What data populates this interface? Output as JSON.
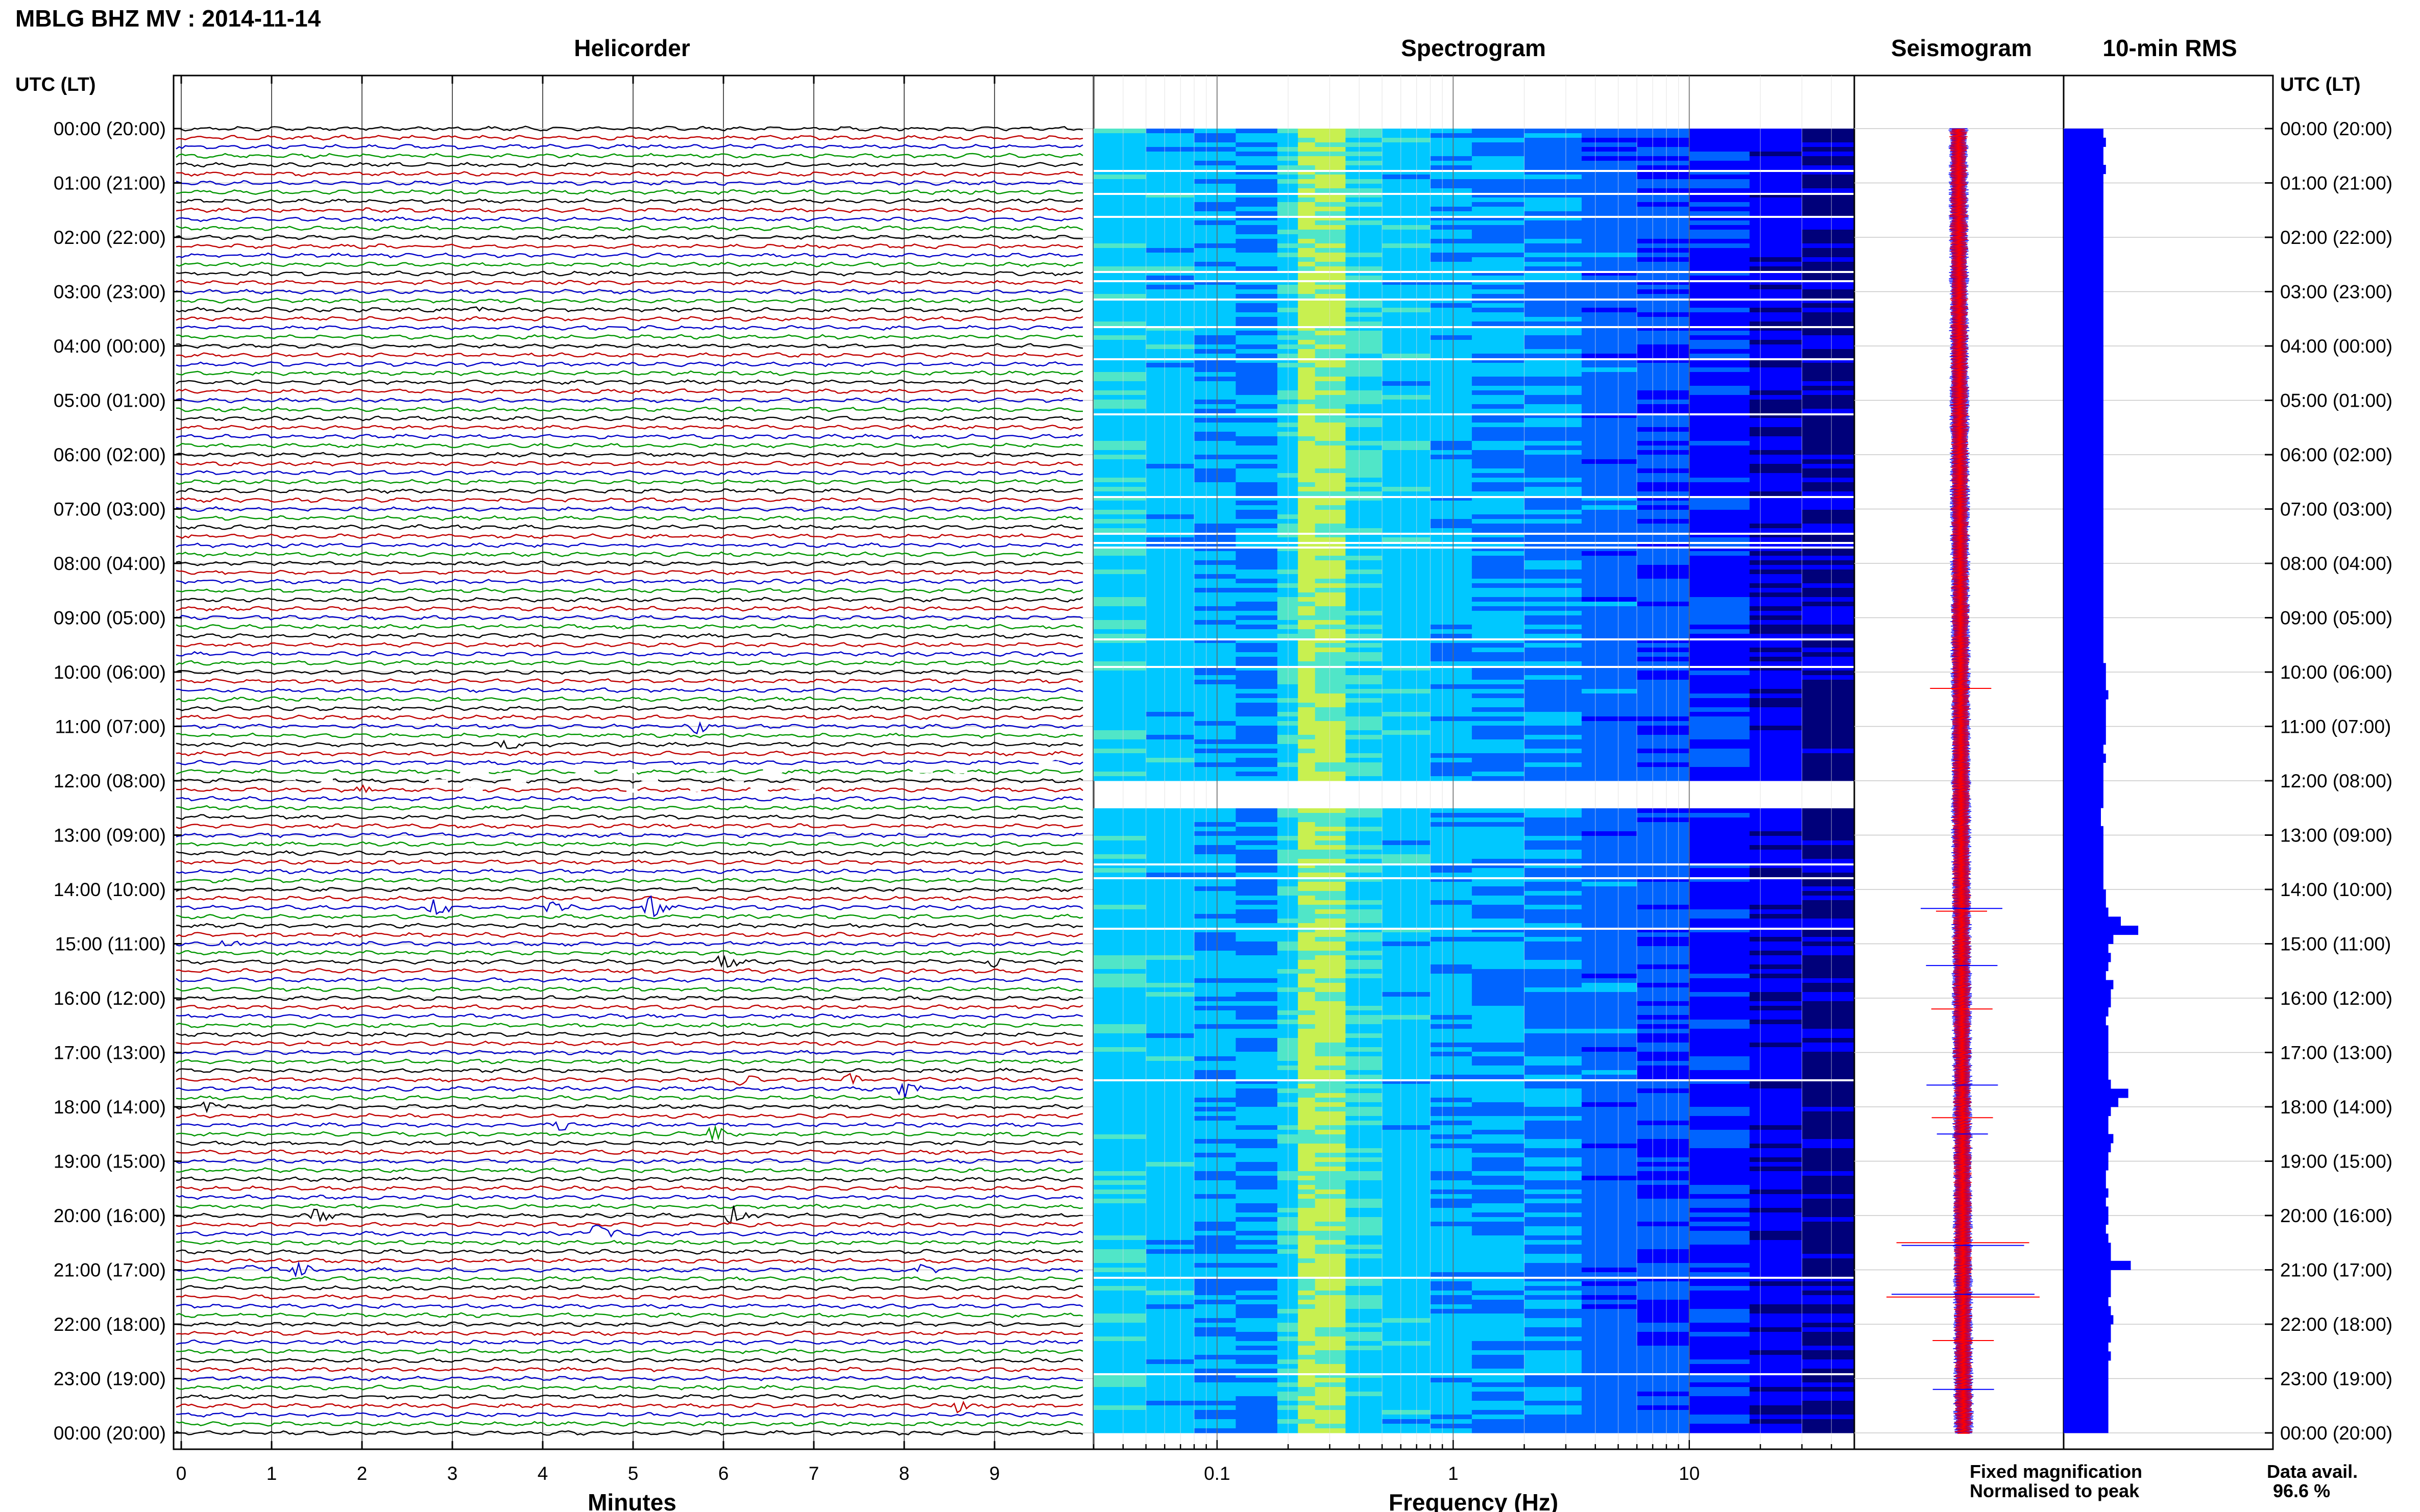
{
  "header": {
    "station_title": "MBLG BHZ MV : 2014-11-14",
    "time_axis_label": "UTC (LT)"
  },
  "panels": {
    "helicorder": "Helicorder",
    "spectrogram": "Spectrogram",
    "seismogram": "Seismogram",
    "rms": "10-min RMS"
  },
  "axes": {
    "minutes_label": "Minutes",
    "frequency_label": "Frequency (Hz)"
  },
  "legend": {
    "fixed": "Fixed magnification",
    "fixed_color": "#0000ff",
    "normalised": "Normalised to peak",
    "normalised_color": "#ff0000"
  },
  "availability": {
    "label": "Data avail.",
    "value": "96.6 %"
  },
  "chart_data": [
    {
      "type": "line",
      "name": "helicorder",
      "title": "Helicorder",
      "xlabel": "Minutes",
      "xlim": [
        0,
        10
      ],
      "x_ticks": [
        "0",
        "1",
        "2",
        "3",
        "4",
        "5",
        "6",
        "7",
        "8",
        "9"
      ],
      "y_ticks": [
        "00:00 (20:00)",
        "01:00 (21:00)",
        "02:00 (22:00)",
        "03:00 (23:00)",
        "04:00 (00:00)",
        "05:00 (01:00)",
        "06:00 (02:00)",
        "07:00 (03:00)",
        "08:00 (04:00)",
        "09:00 (05:00)",
        "10:00 (06:00)",
        "11:00 (07:00)",
        "12:00 (08:00)",
        "13:00 (09:00)",
        "14:00 (10:00)",
        "15:00 (11:00)",
        "16:00 (12:00)",
        "17:00 (13:00)",
        "18:00 (14:00)",
        "19:00 (15:00)",
        "20:00 (16:00)",
        "21:00 (17:00)",
        "22:00 (18:00)",
        "23:00 (19:00)",
        "00:00 (20:00)"
      ],
      "trace_colors": [
        "#000000",
        "#c00000",
        "#0000c8",
        "#009600"
      ],
      "grid": true
    },
    {
      "type": "heatmap",
      "name": "spectrogram",
      "title": "Spectrogram",
      "xlabel": "Frequency (Hz)",
      "x_scale": "log",
      "xlim": [
        0.03,
        50
      ],
      "x_ticks": [
        "0.1",
        "1",
        "10"
      ],
      "colors": [
        "#00007a",
        "#0000ff",
        "#0064ff",
        "#00c8ff",
        "#50e6c8",
        "#c8f050"
      ],
      "data_gaps_utc": [
        "12:00-12:30"
      ]
    },
    {
      "type": "line",
      "name": "seismogram",
      "title": "Seismogram",
      "series": [
        {
          "name": "Fixed magnification",
          "color": "#0000ff"
        },
        {
          "name": "Normalised to peak",
          "color": "#ff0000"
        }
      ]
    },
    {
      "type": "bar",
      "name": "rms",
      "title": "10-min RMS",
      "orientation": "horizontal",
      "bar_color": "#0000ff",
      "intervals_per_hour": 6,
      "hours": 24,
      "values": [
        1.6,
        1.7,
        1.6,
        1.6,
        1.7,
        1.6,
        1.6,
        1.6,
        1.6,
        1.6,
        1.6,
        1.6,
        1.6,
        1.6,
        1.6,
        1.6,
        1.6,
        1.6,
        1.6,
        1.6,
        1.6,
        1.6,
        1.6,
        1.6,
        1.6,
        1.6,
        1.6,
        1.6,
        1.6,
        1.6,
        1.6,
        1.6,
        1.6,
        1.6,
        1.6,
        1.6,
        1.6,
        1.6,
        1.6,
        1.6,
        1.6,
        1.6,
        1.6,
        1.6,
        1.6,
        1.6,
        1.6,
        1.6,
        1.6,
        1.6,
        1.6,
        1.6,
        1.6,
        1.6,
        1.6,
        1.6,
        1.6,
        1.6,
        1.6,
        1.7,
        1.7,
        1.7,
        1.8,
        1.7,
        1.7,
        1.7,
        1.7,
        1.7,
        1.6,
        1.7,
        1.6,
        1.6,
        1.6,
        1.6,
        1.6,
        1.5,
        1.5,
        1.6,
        1.6,
        1.6,
        1.6,
        1.6,
        1.6,
        1.6,
        1.7,
        1.7,
        1.8,
        2.3,
        3.0,
        2.0,
        1.8,
        1.9,
        1.8,
        1.7,
        2.0,
        1.9,
        1.9,
        1.8,
        1.7,
        1.8,
        1.8,
        1.8,
        1.8,
        1.8,
        1.8,
        1.9,
        2.6,
        2.2,
        1.9,
        1.8,
        1.8,
        2.0,
        1.9,
        1.8,
        1.8,
        1.7,
        1.7,
        1.8,
        1.7,
        1.8,
        1.8,
        1.7,
        1.8,
        1.9,
        1.9,
        2.7,
        1.9,
        1.9,
        1.9,
        1.8,
        1.9,
        2.0,
        1.9,
        1.9,
        1.8,
        1.9,
        1.8,
        1.8,
        1.8,
        1.8,
        1.8,
        1.8,
        1.8,
        1.8
      ]
    }
  ]
}
